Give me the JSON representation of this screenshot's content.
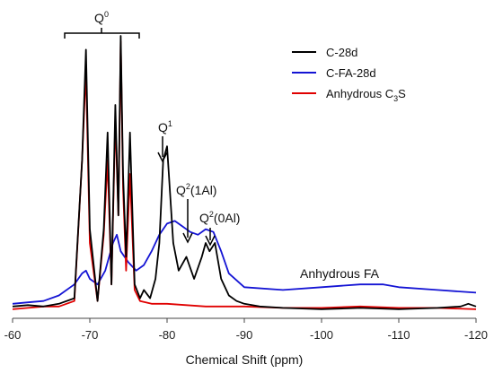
{
  "chart_data": {
    "type": "line",
    "xlabel": "Chemical Shift (ppm)",
    "ylabel": "",
    "xlim": [
      -60,
      -120
    ],
    "x_ticks": [
      -60,
      -70,
      -80,
      -90,
      -100,
      -110,
      -120
    ],
    "x_tick_labels": [
      "-60",
      "-70",
      "-80",
      "-90",
      "-100",
      "-110",
      "-120"
    ],
    "y_axis_visible": false,
    "grid": false,
    "legend_position": "top-right",
    "series": [
      {
        "name": "C-28d",
        "color": "#000000",
        "x": [
          -60,
          -62,
          -64,
          -66,
          -68,
          -69,
          -69.5,
          -70,
          -71,
          -71.8,
          -72.3,
          -72.8,
          -73.3,
          -73.7,
          -74,
          -74.3,
          -74.7,
          -75.2,
          -75.8,
          -76.5,
          -77,
          -77.8,
          -78.5,
          -79,
          -79.5,
          -80,
          -80.8,
          -81.5,
          -82.5,
          -83.5,
          -84.5,
          -85,
          -85.5,
          -86.2,
          -87,
          -88,
          -89,
          -90,
          -92,
          -95,
          -100,
          -105,
          -110,
          -115,
          -118,
          -119,
          -120
        ],
        "values": [
          0.02,
          0.025,
          0.02,
          0.03,
          0.05,
          0.55,
          0.95,
          0.3,
          0.04,
          0.3,
          0.65,
          0.1,
          0.75,
          0.35,
          1.0,
          0.5,
          0.2,
          0.65,
          0.1,
          0.05,
          0.08,
          0.05,
          0.12,
          0.25,
          0.55,
          0.6,
          0.25,
          0.15,
          0.2,
          0.12,
          0.2,
          0.25,
          0.22,
          0.25,
          0.12,
          0.06,
          0.04,
          0.03,
          0.02,
          0.015,
          0.01,
          0.015,
          0.01,
          0.015,
          0.02,
          0.03,
          0.02
        ]
      },
      {
        "name": "C-FA-28d",
        "color": "#1414d4",
        "x": [
          -60,
          -62,
          -64,
          -66,
          -68,
          -69,
          -69.5,
          -70,
          -71,
          -72,
          -73,
          -73.5,
          -74,
          -75,
          -76,
          -77,
          -78,
          -79,
          -80,
          -81,
          -82,
          -83,
          -84,
          -85,
          -86,
          -87,
          -88,
          -90,
          -95,
          -100,
          -105,
          -108,
          -110,
          -115,
          -120
        ],
        "values": [
          0.03,
          0.035,
          0.04,
          0.06,
          0.1,
          0.14,
          0.15,
          0.12,
          0.1,
          0.15,
          0.25,
          0.28,
          0.22,
          0.18,
          0.15,
          0.17,
          0.22,
          0.28,
          0.32,
          0.33,
          0.31,
          0.29,
          0.28,
          0.3,
          0.29,
          0.22,
          0.14,
          0.09,
          0.08,
          0.09,
          0.1,
          0.1,
          0.09,
          0.08,
          0.07
        ]
      },
      {
        "name": "Anhydrous C3S",
        "color": "#e00000",
        "x": [
          -60,
          -62,
          -64,
          -66,
          -68,
          -69,
          -69.5,
          -70,
          -71,
          -71.8,
          -72.3,
          -72.8,
          -73.3,
          -73.7,
          -74,
          -74.3,
          -74.7,
          -75.2,
          -75.8,
          -76.5,
          -78,
          -80,
          -85,
          -90,
          -95,
          -100,
          -105,
          -110,
          -115,
          -120
        ],
        "values": [
          0.01,
          0.015,
          0.02,
          0.02,
          0.04,
          0.55,
          0.88,
          0.25,
          0.04,
          0.28,
          0.55,
          0.1,
          0.7,
          0.35,
          0.98,
          0.45,
          0.15,
          0.5,
          0.08,
          0.04,
          0.03,
          0.03,
          0.02,
          0.02,
          0.015,
          0.015,
          0.02,
          0.015,
          0.015,
          0.01
        ]
      }
    ],
    "legend": [
      {
        "label_main": "C-28d",
        "label_sub": "",
        "label_tail": ""
      },
      {
        "label_main": "C-FA-28d",
        "label_sub": "",
        "label_tail": ""
      },
      {
        "label_main": "Anhydrous C",
        "label_sub": "3",
        "label_tail": "S"
      }
    ],
    "annotations": {
      "q0": {
        "base": "Q",
        "sup": "0"
      },
      "q1": {
        "base": "Q",
        "sup": "1"
      },
      "q2_1al": {
        "base": "Q",
        "sup": "2",
        "tail": "(1Al)"
      },
      "q2_0al": {
        "base": "Q",
        "sup": "2",
        "tail": "(0Al)"
      },
      "anhydrous_fa": "Anhydrous FA"
    }
  }
}
